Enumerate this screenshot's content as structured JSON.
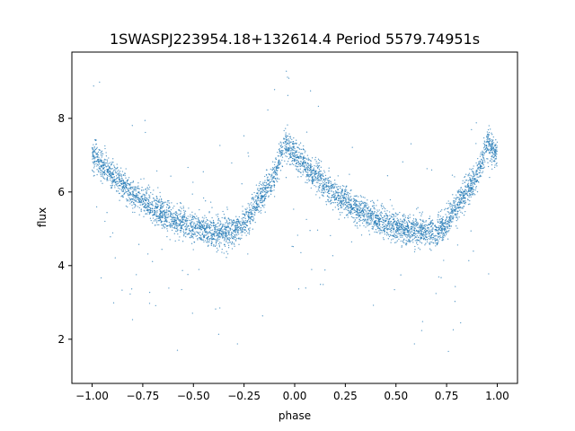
{
  "chart_data": {
    "type": "scatter",
    "title": "1SWASPJ223954.18+132614.4 Period 5579.74951s",
    "xlabel": "phase",
    "ylabel": "flux",
    "xlim": [
      -1.1,
      1.1
    ],
    "ylim": [
      0.8,
      9.8
    ],
    "xticks": [
      "−1.00",
      "−0.75",
      "−0.50",
      "−0.25",
      "0.00",
      "0.25",
      "0.50",
      "0.75",
      "1.00"
    ],
    "xtick_values": [
      -1.0,
      -0.75,
      -0.5,
      -0.25,
      0.0,
      0.25,
      0.5,
      0.75,
      1.0
    ],
    "yticks": [
      "2",
      "4",
      "6",
      "8"
    ],
    "ytick_values": [
      2,
      4,
      6,
      8
    ],
    "grid": false,
    "point_color": "#1f77b4",
    "curve": [
      {
        "phase": -1.0,
        "flux": 7.0
      },
      {
        "phase": -0.9,
        "flux": 6.45
      },
      {
        "phase": -0.8,
        "flux": 5.95
      },
      {
        "phase": -0.7,
        "flux": 5.55
      },
      {
        "phase": -0.6,
        "flux": 5.25
      },
      {
        "phase": -0.5,
        "flux": 5.05
      },
      {
        "phase": -0.4,
        "flux": 4.92
      },
      {
        "phase": -0.3,
        "flux": 4.92
      },
      {
        "phase": -0.25,
        "flux": 5.15
      },
      {
        "phase": -0.2,
        "flux": 5.6
      },
      {
        "phase": -0.1,
        "flux": 6.4
      },
      {
        "phase": -0.05,
        "flux": 7.35
      },
      {
        "phase": 0.0,
        "flux": 7.0
      },
      {
        "phase": 0.1,
        "flux": 6.45
      },
      {
        "phase": 0.2,
        "flux": 5.95
      },
      {
        "phase": 0.3,
        "flux": 5.55
      },
      {
        "phase": 0.4,
        "flux": 5.25
      },
      {
        "phase": 0.5,
        "flux": 5.05
      },
      {
        "phase": 0.6,
        "flux": 4.92
      },
      {
        "phase": 0.7,
        "flux": 4.92
      },
      {
        "phase": 0.75,
        "flux": 5.15
      },
      {
        "phase": 0.8,
        "flux": 5.6
      },
      {
        "phase": 0.9,
        "flux": 6.4
      },
      {
        "phase": 0.95,
        "flux": 7.35
      },
      {
        "phase": 1.0,
        "flux": 7.0
      }
    ]
  }
}
